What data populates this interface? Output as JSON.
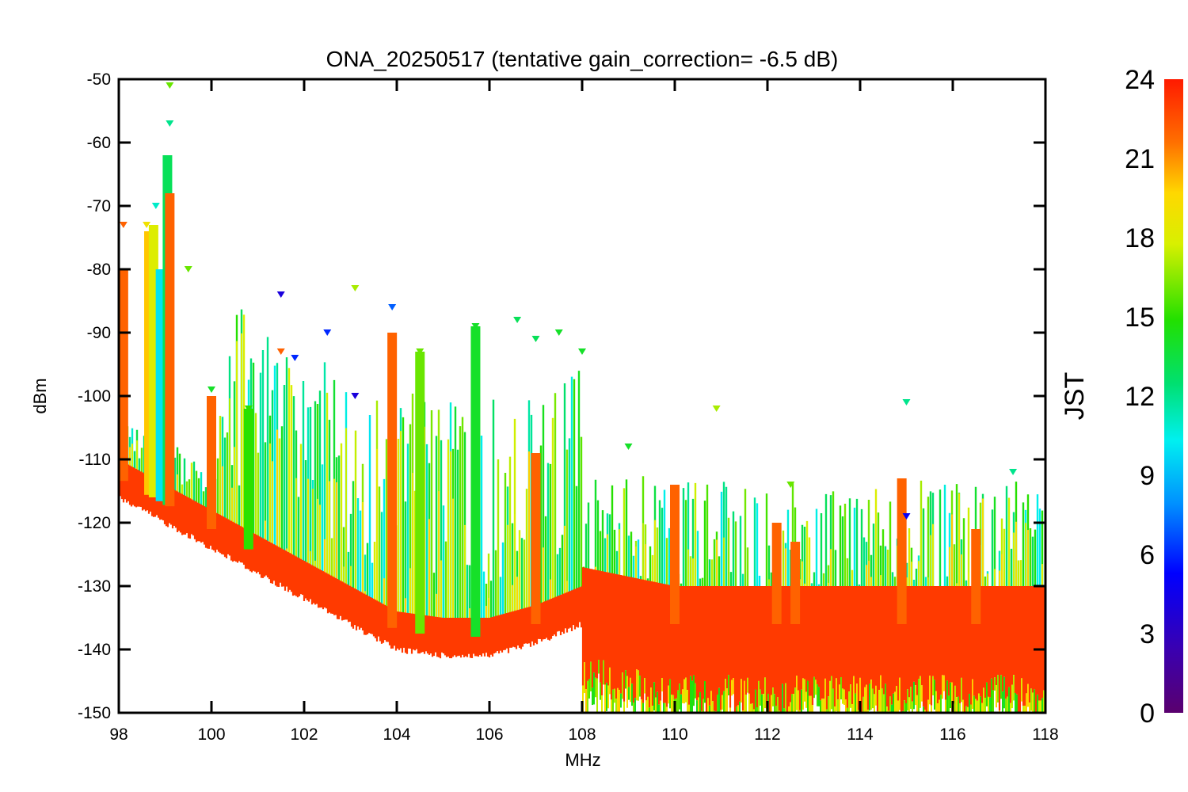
{
  "chart_data": {
    "type": "scatter",
    "title": "ONA_20250517 (tentative gain_correction= -6.5 dB)",
    "xlabel": "MHz",
    "ylabel": "dBm",
    "xlim": [
      98,
      118
    ],
    "ylim": [
      -150,
      -50
    ],
    "x_ticks": [
      "98",
      "100",
      "102",
      "104",
      "106",
      "108",
      "110",
      "112",
      "114",
      "116",
      "118"
    ],
    "y_ticks": [
      "-50",
      "-60",
      "-70",
      "-80",
      "-90",
      "-100",
      "-110",
      "-120",
      "-130",
      "-140",
      "-150"
    ],
    "colorbar": {
      "label": "JST",
      "range": [
        0,
        24
      ],
      "ticks": [
        "0",
        "3",
        "6",
        "9",
        "12",
        "15",
        "18",
        "21",
        "24"
      ],
      "colormap": "rainbow (purple-blue-cyan-green-yellow-orange-red)"
    },
    "marker": "downward triangle",
    "noise_floor": [
      {
        "mhz": 98.0,
        "dbm": -113
      },
      {
        "mhz": 99.0,
        "dbm": -117
      },
      {
        "mhz": 100.0,
        "dbm": -121
      },
      {
        "mhz": 101.0,
        "dbm": -125
      },
      {
        "mhz": 102.0,
        "dbm": -129
      },
      {
        "mhz": 103.0,
        "dbm": -133
      },
      {
        "mhz": 104.0,
        "dbm": -137
      },
      {
        "mhz": 105.0,
        "dbm": -138
      },
      {
        "mhz": 106.0,
        "dbm": -138
      },
      {
        "mhz": 107.0,
        "dbm": -136
      },
      {
        "mhz": 108.0,
        "dbm": -133
      },
      {
        "mhz": 110.0,
        "dbm": -136
      },
      {
        "mhz": 114.0,
        "dbm": -136
      },
      {
        "mhz": 118.0,
        "dbm": -136
      }
    ],
    "peaks": [
      {
        "mhz": 98.1,
        "dbm": -73,
        "jst": 22
      },
      {
        "mhz": 98.6,
        "dbm": -73,
        "jst": 19
      },
      {
        "mhz": 98.8,
        "dbm": -70,
        "jst": 11
      },
      {
        "mhz": 99.1,
        "dbm": -51,
        "jst": 16
      },
      {
        "mhz": 99.1,
        "dbm": -57,
        "jst": 12
      },
      {
        "mhz": 99.5,
        "dbm": -80,
        "jst": 16
      },
      {
        "mhz": 100.0,
        "dbm": -99,
        "jst": 14
      },
      {
        "mhz": 100.8,
        "dbm": -102,
        "jst": 15
      },
      {
        "mhz": 101.5,
        "dbm": -84,
        "jst": 4
      },
      {
        "mhz": 101.5,
        "dbm": -93,
        "jst": 22
      },
      {
        "mhz": 101.8,
        "dbm": -94,
        "jst": 6
      },
      {
        "mhz": 102.5,
        "dbm": -90,
        "jst": 6
      },
      {
        "mhz": 103.1,
        "dbm": -83,
        "jst": 17
      },
      {
        "mhz": 103.1,
        "dbm": -100,
        "jst": 4
      },
      {
        "mhz": 103.9,
        "dbm": -86,
        "jst": 7
      },
      {
        "mhz": 104.5,
        "dbm": -93,
        "jst": 16
      },
      {
        "mhz": 105.7,
        "dbm": -89,
        "jst": 14
      },
      {
        "mhz": 106.6,
        "dbm": -88,
        "jst": 13
      },
      {
        "mhz": 107.0,
        "dbm": -91,
        "jst": 13
      },
      {
        "mhz": 107.5,
        "dbm": -90,
        "jst": 14
      },
      {
        "mhz": 108.0,
        "dbm": -93,
        "jst": 14
      },
      {
        "mhz": 109.0,
        "dbm": -108,
        "jst": 14
      },
      {
        "mhz": 110.9,
        "dbm": -102,
        "jst": 17
      },
      {
        "mhz": 112.5,
        "dbm": -114,
        "jst": 16
      },
      {
        "mhz": 115.0,
        "dbm": -101,
        "jst": 12
      },
      {
        "mhz": 115.0,
        "dbm": -119,
        "jst": 5
      },
      {
        "mhz": 116.5,
        "dbm": -125,
        "jst": 22
      },
      {
        "mhz": 117.3,
        "dbm": -112,
        "jst": 12
      }
    ],
    "bands": [
      {
        "mhz": 98.0,
        "top": -106,
        "jst": 22
      },
      {
        "mhz": 98.1,
        "top": -80,
        "jst": 22
      },
      {
        "mhz": 98.65,
        "top": -74,
        "jst": 20
      },
      {
        "mhz": 98.75,
        "top": -73,
        "jst": 18
      },
      {
        "mhz": 98.9,
        "top": -80,
        "jst": 10
      },
      {
        "mhz": 99.05,
        "top": -62,
        "jst": 13
      },
      {
        "mhz": 99.1,
        "top": -68,
        "jst": 22
      },
      {
        "mhz": 100.0,
        "top": -100,
        "jst": 22
      },
      {
        "mhz": 100.8,
        "top": -102,
        "jst": 15
      },
      {
        "mhz": 103.9,
        "top": -90,
        "jst": 22
      },
      {
        "mhz": 104.5,
        "top": -93,
        "jst": 16
      },
      {
        "mhz": 105.7,
        "top": -89,
        "jst": 14
      },
      {
        "mhz": 107.0,
        "top": -109,
        "jst": 22
      },
      {
        "mhz": 110.0,
        "top": -114,
        "jst": 22
      },
      {
        "mhz": 112.2,
        "top": -120,
        "jst": 22
      },
      {
        "mhz": 112.6,
        "top": -123,
        "jst": 22
      },
      {
        "mhz": 114.9,
        "top": -113,
        "jst": 22
      },
      {
        "mhz": 116.5,
        "top": -121,
        "jst": 22
      }
    ]
  }
}
